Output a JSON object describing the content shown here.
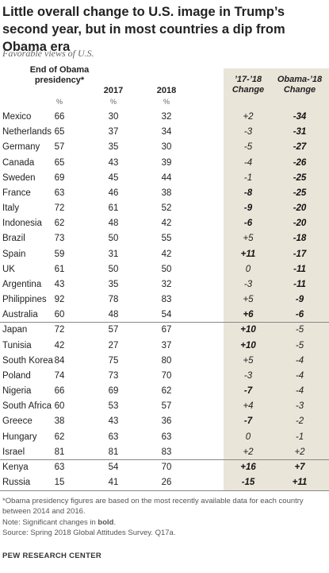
{
  "header": {
    "title": "Little overall change to U.S. image in Trump’s second year, but in most countries a dip from Obama era",
    "subtitle": "Favorable views of U.S."
  },
  "table": {
    "columns": [
      {
        "label": "End of Obama presidency*",
        "unit": "%"
      },
      {
        "label": "2017",
        "unit": "%"
      },
      {
        "label": "2018",
        "unit": "%"
      },
      {
        "label": "’17-’18 Change"
      },
      {
        "label": "Obama-’18 Change"
      }
    ],
    "groups": [
      {
        "rows": [
          {
            "cells": [
              "Mexico",
              66,
              30,
              32,
              "+2",
              "-34"
            ],
            "bold": [
              false,
              true
            ]
          },
          {
            "cells": [
              "Netherlands",
              65,
              37,
              34,
              "-3",
              "-31"
            ],
            "bold": [
              false,
              true
            ]
          },
          {
            "cells": [
              "Germany",
              57,
              35,
              30,
              "-5",
              "-27"
            ],
            "bold": [
              false,
              true
            ]
          },
          {
            "cells": [
              "Canada",
              65,
              43,
              39,
              "-4",
              "-26"
            ],
            "bold": [
              false,
              true
            ]
          },
          {
            "cells": [
              "Sweden",
              69,
              45,
              44,
              "-1",
              "-25"
            ],
            "bold": [
              false,
              true
            ]
          },
          {
            "cells": [
              "France",
              63,
              46,
              38,
              "-8",
              "-25"
            ],
            "bold": [
              true,
              true
            ]
          },
          {
            "cells": [
              "Italy",
              72,
              61,
              52,
              "-9",
              "-20"
            ],
            "bold": [
              true,
              true
            ]
          },
          {
            "cells": [
              "Indonesia",
              62,
              48,
              42,
              "-6",
              "-20"
            ],
            "bold": [
              true,
              true
            ]
          },
          {
            "cells": [
              "Brazil",
              73,
              50,
              55,
              "+5",
              "-18"
            ],
            "bold": [
              false,
              true
            ]
          },
          {
            "cells": [
              "Spain",
              59,
              31,
              42,
              "+11",
              "-17"
            ],
            "bold": [
              true,
              true
            ]
          },
          {
            "cells": [
              "UK",
              61,
              50,
              50,
              "0",
              "-11"
            ],
            "bold": [
              false,
              true
            ]
          },
          {
            "cells": [
              "Argentina",
              43,
              35,
              32,
              "-3",
              "-11"
            ],
            "bold": [
              false,
              true
            ]
          },
          {
            "cells": [
              "Philippines",
              92,
              78,
              83,
              "+5",
              "-9"
            ],
            "bold": [
              false,
              true
            ]
          },
          {
            "cells": [
              "Australia",
              60,
              48,
              54,
              "+6",
              "-6"
            ],
            "bold": [
              true,
              true
            ]
          }
        ]
      },
      {
        "rows": [
          {
            "cells": [
              "Japan",
              72,
              57,
              67,
              "+10",
              "-5"
            ],
            "bold": [
              true,
              false
            ]
          },
          {
            "cells": [
              "Tunisia",
              42,
              27,
              37,
              "+10",
              "-5"
            ],
            "bold": [
              true,
              false
            ]
          },
          {
            "cells": [
              "South Korea",
              84,
              75,
              80,
              "+5",
              "-4"
            ],
            "bold": [
              false,
              false
            ]
          },
          {
            "cells": [
              "Poland",
              74,
              73,
              70,
              "-3",
              "-4"
            ],
            "bold": [
              false,
              false
            ]
          },
          {
            "cells": [
              "Nigeria",
              66,
              69,
              62,
              "-7",
              "-4"
            ],
            "bold": [
              true,
              false
            ]
          },
          {
            "cells": [
              "South Africa",
              60,
              53,
              57,
              "+4",
              "-3"
            ],
            "bold": [
              false,
              false
            ]
          },
          {
            "cells": [
              "Greece",
              38,
              43,
              36,
              "-7",
              "-2"
            ],
            "bold": [
              true,
              false
            ]
          },
          {
            "cells": [
              "Hungary",
              62,
              63,
              63,
              "0",
              "-1"
            ],
            "bold": [
              false,
              false
            ]
          },
          {
            "cells": [
              "Israel",
              81,
              81,
              83,
              "+2",
              "+2"
            ],
            "bold": [
              false,
              false
            ]
          }
        ]
      },
      {
        "rows": [
          {
            "cells": [
              "Kenya",
              63,
              54,
              70,
              "+16",
              "+7"
            ],
            "bold": [
              true,
              true
            ]
          },
          {
            "cells": [
              "Russia",
              15,
              41,
              26,
              "-15",
              "+11"
            ],
            "bold": [
              true,
              true
            ]
          }
        ]
      }
    ]
  },
  "footer": {
    "footnote": "*Obama presidency figures are based on the most recently available data for each country between 2014 and 2016.",
    "note": [
      "Note: Significant changes in ",
      "bold",
      "."
    ],
    "source": "Source: Spring 2018 Global Attitudes Survey. Q17a.",
    "credit": "PEW RESEARCH CENTER"
  }
}
